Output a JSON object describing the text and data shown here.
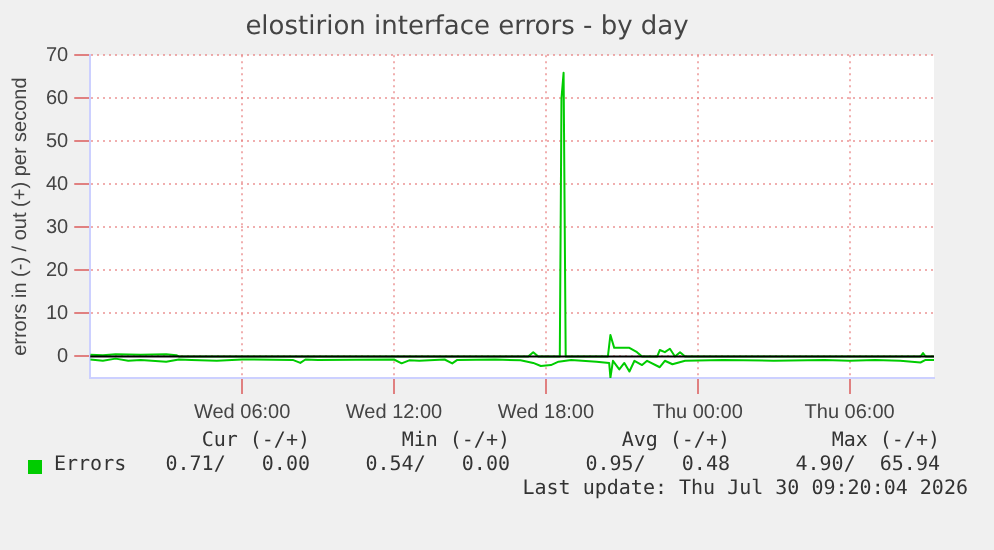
{
  "chart_data": {
    "type": "line",
    "title": "elostirion interface errors - by day",
    "ylabel": "errors in (-) / out (+) per second",
    "xlim": [
      "2026-07-29T00:00",
      "2026-07-30T09:20"
    ],
    "xticks": [
      {
        "value": "2026-07-29T06:00",
        "label": "Wed 06:00"
      },
      {
        "value": "2026-07-29T12:00",
        "label": "Wed 12:00"
      },
      {
        "value": "2026-07-29T18:00",
        "label": "Wed 18:00"
      },
      {
        "value": "2026-07-30T00:00",
        "label": "Thu 00:00"
      },
      {
        "value": "2026-07-30T06:00",
        "label": "Thu 06:00"
      }
    ],
    "ylim": [
      -5,
      70
    ],
    "yticks": [
      0,
      10,
      20,
      30,
      40,
      50,
      60,
      70
    ],
    "grid": true,
    "legend": "bottom left",
    "marker": "none",
    "line_style": "solid",
    "ref_lines": [
      {
        "axis": "y",
        "value": 0,
        "color": "#000000"
      }
    ],
    "series": [
      {
        "name": "Errors",
        "color": "#00cc00",
        "x": [
          "2026-07-29T00:00",
          "2026-07-29T00:30",
          "2026-07-29T01:00",
          "2026-07-29T02:00",
          "2026-07-29T03:00",
          "2026-07-29T03:24",
          "2026-07-29T03:30",
          "2026-07-29T17:18",
          "2026-07-29T17:30",
          "2026-07-29T17:42",
          "2026-07-29T18:33",
          "2026-07-29T18:37",
          "2026-07-29T18:42",
          "2026-07-29T18:47",
          "2026-07-29T20:27",
          "2026-07-29T20:33",
          "2026-07-29T20:42",
          "2026-07-29T21:18",
          "2026-07-29T21:36",
          "2026-07-29T21:48",
          "2026-07-29T22:24",
          "2026-07-29T22:30",
          "2026-07-29T22:42",
          "2026-07-29T22:54",
          "2026-07-29T23:06",
          "2026-07-29T23:18",
          "2026-07-29T23:30",
          "2026-07-30T08:48",
          "2026-07-30T08:54",
          "2026-07-30T09:00",
          "2026-07-30T09:20"
        ],
        "values": [
          0.4,
          0.3,
          0.5,
          0.4,
          0.5,
          0.3,
          0,
          0,
          1,
          0,
          0,
          60,
          65.94,
          0,
          0,
          5,
          2,
          2,
          1,
          0,
          0,
          1.5,
          1,
          1.8,
          0,
          1,
          0,
          0,
          0.8,
          0,
          0
        ]
      },
      {
        "color": "#00cc00",
        "x": [
          "2026-07-29T00:00",
          "2026-07-29T00:30",
          "2026-07-29T01:00",
          "2026-07-29T01:30",
          "2026-07-29T02:00",
          "2026-07-29T03:00",
          "2026-07-29T03:30",
          "2026-07-29T04:00",
          "2026-07-29T05:00",
          "2026-07-29T06:00",
          "2026-07-29T08:00",
          "2026-07-29T08:18",
          "2026-07-29T08:30",
          "2026-07-29T09:00",
          "2026-07-29T12:00",
          "2026-07-29T12:18",
          "2026-07-29T12:36",
          "2026-07-29T13:00",
          "2026-07-29T14:00",
          "2026-07-29T14:18",
          "2026-07-29T14:30",
          "2026-07-29T16:00",
          "2026-07-29T17:00",
          "2026-07-29T17:30",
          "2026-07-29T17:48",
          "2026-07-29T18:12",
          "2026-07-29T18:30",
          "2026-07-29T19:00",
          "2026-07-29T20:00",
          "2026-07-29T20:30",
          "2026-07-29T20:33",
          "2026-07-29T20:39",
          "2026-07-29T20:54",
          "2026-07-29T21:06",
          "2026-07-29T21:18",
          "2026-07-29T21:30",
          "2026-07-29T21:48",
          "2026-07-29T22:00",
          "2026-07-29T22:30",
          "2026-07-29T22:42",
          "2026-07-29T23:00",
          "2026-07-29T23:30",
          "2026-07-30T01:00",
          "2026-07-30T03:00",
          "2026-07-30T05:00",
          "2026-07-30T06:00",
          "2026-07-30T07:00",
          "2026-07-30T08:00",
          "2026-07-30T08:48",
          "2026-07-30T09:00",
          "2026-07-30T09:20"
        ],
        "values": [
          -0.7,
          -1,
          -0.5,
          -1,
          -0.8,
          -1.2,
          -0.7,
          -0.8,
          -1,
          -0.7,
          -0.8,
          -1.5,
          -0.7,
          -0.8,
          -0.7,
          -1.6,
          -0.9,
          -1,
          -0.7,
          -1.6,
          -0.8,
          -0.7,
          -0.9,
          -1.5,
          -2.2,
          -2,
          -1.2,
          -0.8,
          -1.2,
          -1.5,
          -4.9,
          -1,
          -3,
          -1.5,
          -3.5,
          -1,
          -2,
          -1,
          -2.5,
          -1,
          -1.8,
          -1,
          -0.8,
          -1,
          -0.8,
          -1,
          -0.8,
          -1,
          -1.4,
          -0.8,
          -0.8
        ]
      }
    ],
    "annotations": [
      "Cur (-/+)",
      "Min (-/+)",
      "Avg (-/+)",
      "Max (-/+)",
      "0.71/   0.00",
      "0.54/   0.00",
      "0.95/   0.48",
      "4.90/  65.94",
      "Last update: Thu Jul 30 09:20:04 2026"
    ]
  }
}
